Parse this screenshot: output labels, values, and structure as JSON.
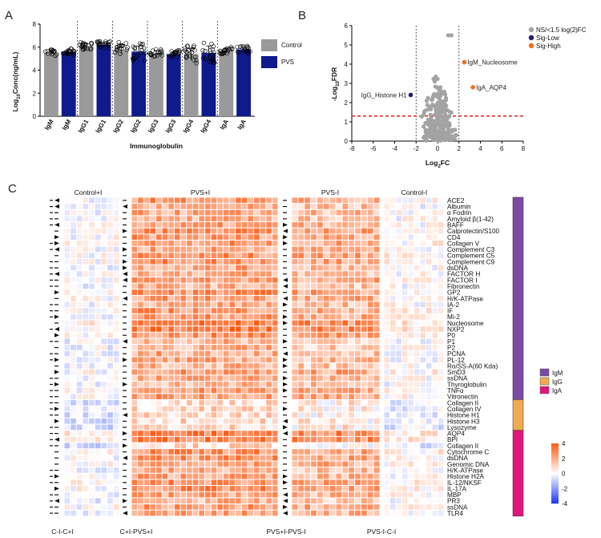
{
  "panels": {
    "a": "A",
    "b": "B",
    "c": "C"
  },
  "chart_data": [
    {
      "type": "bar",
      "panel": "A",
      "xlabel": "Immunoglobulin",
      "ylabel": "Log10Conc(ng/mL)",
      "ylim": [
        0,
        8
      ],
      "yticks": [
        0,
        2,
        4,
        6,
        8
      ],
      "categories": [
        "IgM",
        "IgM",
        "IgG1",
        "IgG1",
        "IgG2",
        "IgG2",
        "IgG3",
        "IgG3",
        "IgG4",
        "IgG4",
        "IgA",
        "IgA"
      ],
      "groups": [
        "Control",
        "PVS",
        "Control",
        "PVS",
        "Control",
        "PVS",
        "Control",
        "PVS",
        "Control",
        "PVS",
        "Control",
        "PVS"
      ],
      "values": [
        5.5,
        5.6,
        6.1,
        6.2,
        5.8,
        5.6,
        5.5,
        5.4,
        5.4,
        5.5,
        5.7,
        5.8
      ],
      "errors": [
        0.2,
        0.2,
        0.2,
        0.2,
        0.4,
        0.5,
        0.2,
        0.2,
        0.5,
        0.6,
        0.2,
        0.2
      ],
      "legend": [
        {
          "name": "Control",
          "color": "#9a9a9a"
        },
        {
          "name": "PVS",
          "color": "#0f1a8c"
        }
      ]
    },
    {
      "type": "scatter",
      "panel": "B",
      "title": "",
      "xlabel": "Log2FC",
      "ylabel": "-Log10FDR",
      "xlim": [
        -8,
        8
      ],
      "ylim": [
        0,
        6
      ],
      "xticks": [
        -8,
        -6,
        -4,
        -2,
        0,
        2,
        4,
        6,
        8
      ],
      "yticks": [
        0,
        1,
        2,
        3,
        4,
        5,
        6
      ],
      "fc_thresholds": [
        -2,
        2
      ],
      "fdr_threshold": 1.3,
      "legend": [
        {
          "name": "NS/<1.5 log(2)FC",
          "color": "#a3a3a3"
        },
        {
          "name": "Sig-Low",
          "color": "#2d1a6e"
        },
        {
          "name": "Sig-High",
          "color": "#f07020"
        }
      ],
      "highlighted": [
        {
          "label": "IgM_Nucleosome",
          "x": 2.5,
          "y": 4.1,
          "group": "Sig-High"
        },
        {
          "label": "IgA_AQP4",
          "x": 3.3,
          "y": 2.8,
          "group": "Sig-High"
        },
        {
          "label": "IgG_Histone H1",
          "x": -2.5,
          "y": 2.4,
          "group": "Sig-Low"
        }
      ]
    },
    {
      "type": "heatmap",
      "panel": "C",
      "column_groups": [
        "Control+I",
        "PVS+I",
        "PVS-I",
        "Control-I"
      ],
      "bottom_labels": [
        "C-I-C+I",
        "C+I-PVS+I",
        "PVS+I-PVS-I",
        "PVS-I-C-I"
      ],
      "rows": [
        "ACE2",
        "Albumin",
        "α Fodrin",
        "Amyloid β(1-42)",
        "BAFF",
        "Calprotectin/S100",
        "CD4",
        "Collagen V",
        "Complement C3",
        "Complement C5",
        "Complement C9",
        "dsDNA",
        "FACTOR H",
        "FACTOR I",
        "Fibronectin",
        "GP2",
        "H/K-ATPase",
        "IA-2",
        "IF",
        "Mi-2",
        "Nucleosome",
        "NXP2",
        "P0",
        "P1",
        "P2",
        "PCNA",
        "PL-12",
        "Ro/SS-A(60 Kda)",
        "SmD3",
        "ssDNA",
        "Thyroglobulin",
        "TNFα",
        "Vitronectin",
        "Collagen II",
        "Collagen IV",
        "Histone H1",
        "Histone H3",
        "Lysozyme",
        "AQP4",
        "BPI",
        "Collagen II",
        "Cytochrome C",
        "dsDNA",
        "Genomic DNA",
        "H/K-ATPase",
        "Histone H2A",
        "IL-12/NKSF",
        "IL-17A",
        "MBP",
        "PR3",
        "ssDNA",
        "TLR4"
      ],
      "isotype_legend": [
        {
          "name": "IgM",
          "color": "#7b4aa4"
        },
        {
          "name": "IgG",
          "color": "#f0aa50"
        },
        {
          "name": "IgA",
          "color": "#e0167a"
        }
      ],
      "colorbar_ticks": [
        4,
        2,
        0,
        -2,
        -4
      ]
    }
  ]
}
